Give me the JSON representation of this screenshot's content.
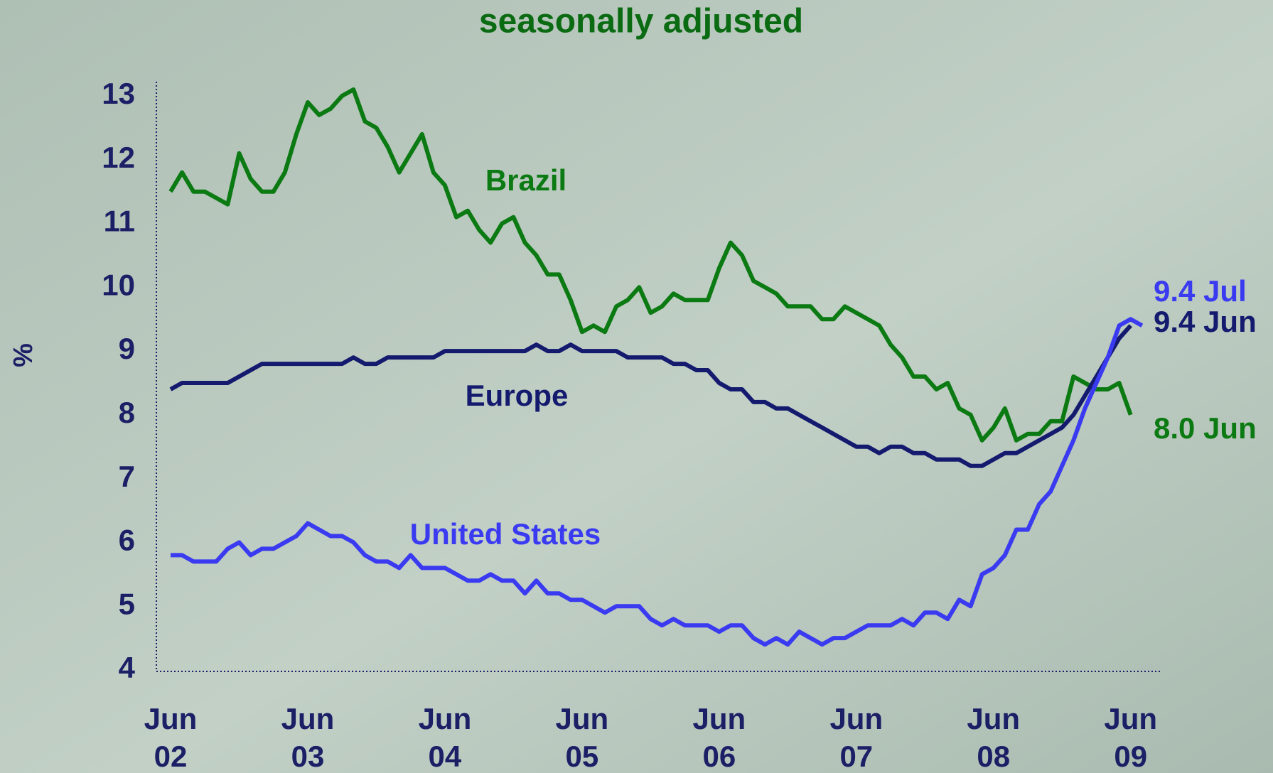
{
  "chart_data": {
    "type": "line",
    "title": "seasonally adjusted",
    "y_label": "%",
    "categories": [
      "Jun 02",
      null,
      null,
      null,
      null,
      null,
      null,
      null,
      null,
      null,
      null,
      null,
      "Jun 03",
      null,
      null,
      null,
      null,
      null,
      null,
      null,
      null,
      null,
      null,
      null,
      "Jun 04",
      null,
      null,
      null,
      null,
      null,
      null,
      null,
      null,
      null,
      null,
      null,
      "Jun 05",
      null,
      null,
      null,
      null,
      null,
      null,
      null,
      null,
      null,
      null,
      null,
      "Jun 06",
      null,
      null,
      null,
      null,
      null,
      null,
      null,
      null,
      null,
      null,
      null,
      "Jun 07",
      null,
      null,
      null,
      null,
      null,
      null,
      null,
      null,
      null,
      null,
      null,
      "Jun 08",
      null,
      null,
      null,
      null,
      null,
      null,
      null,
      null,
      null,
      null,
      null,
      "Jun 09",
      null
    ],
    "ylim": [
      4,
      13
    ],
    "yticks": [
      4,
      5,
      6,
      7,
      8,
      9,
      10,
      11,
      12,
      13
    ],
    "grid": false,
    "series": [
      {
        "name": "Brazil",
        "color": "#0b7a12",
        "end_label": "8.0 Jun",
        "values": [
          11.5,
          11.8,
          11.5,
          11.5,
          11.4,
          11.3,
          12.1,
          11.7,
          11.5,
          11.5,
          11.8,
          12.4,
          12.9,
          12.7,
          12.8,
          13.0,
          13.1,
          12.6,
          12.5,
          12.2,
          11.8,
          12.1,
          12.4,
          11.8,
          11.6,
          11.1,
          11.2,
          10.9,
          10.7,
          11.0,
          11.1,
          10.7,
          10.5,
          10.2,
          10.2,
          9.8,
          9.3,
          9.4,
          9.3,
          9.7,
          9.8,
          10.0,
          9.6,
          9.7,
          9.9,
          9.8,
          9.8,
          9.8,
          10.3,
          10.7,
          10.5,
          10.1,
          10.0,
          9.9,
          9.7,
          9.7,
          9.7,
          9.5,
          9.5,
          9.7,
          9.6,
          9.5,
          9.4,
          9.1,
          8.9,
          8.6,
          8.6,
          8.4,
          8.5,
          8.1,
          8.0,
          7.6,
          7.8,
          8.1,
          7.6,
          7.7,
          7.7,
          7.9,
          7.9,
          8.6,
          8.5,
          8.4,
          8.4,
          8.5,
          8.0,
          null
        ]
      },
      {
        "name": "Europe",
        "color": "#141a6e",
        "end_label": "9.4 Jun",
        "values": [
          8.4,
          8.5,
          8.5,
          8.5,
          8.5,
          8.5,
          8.6,
          8.7,
          8.8,
          8.8,
          8.8,
          8.8,
          8.8,
          8.8,
          8.8,
          8.8,
          8.9,
          8.8,
          8.8,
          8.9,
          8.9,
          8.9,
          8.9,
          8.9,
          9.0,
          9.0,
          9.0,
          9.0,
          9.0,
          9.0,
          9.0,
          9.0,
          9.1,
          9.0,
          9.0,
          9.1,
          9.0,
          9.0,
          9.0,
          9.0,
          8.9,
          8.9,
          8.9,
          8.9,
          8.8,
          8.8,
          8.7,
          8.7,
          8.5,
          8.4,
          8.4,
          8.2,
          8.2,
          8.1,
          8.1,
          8.0,
          7.9,
          7.8,
          7.7,
          7.6,
          7.5,
          7.5,
          7.4,
          7.5,
          7.5,
          7.4,
          7.4,
          7.3,
          7.3,
          7.3,
          7.2,
          7.2,
          7.3,
          7.4,
          7.4,
          7.5,
          7.6,
          7.7,
          7.8,
          8.0,
          8.3,
          8.6,
          8.9,
          9.2,
          9.4,
          null
        ]
      },
      {
        "name": "United States",
        "color": "#3a3af0",
        "end_label": "9.4 Jul",
        "values": [
          5.8,
          5.8,
          5.7,
          5.7,
          5.7,
          5.9,
          6.0,
          5.8,
          5.9,
          5.9,
          6.0,
          6.1,
          6.3,
          6.2,
          6.1,
          6.1,
          6.0,
          5.8,
          5.7,
          5.7,
          5.6,
          5.8,
          5.6,
          5.6,
          5.6,
          5.5,
          5.4,
          5.4,
          5.5,
          5.4,
          5.4,
          5.2,
          5.4,
          5.2,
          5.2,
          5.1,
          5.1,
          5.0,
          4.9,
          5.0,
          5.0,
          5.0,
          4.8,
          4.7,
          4.8,
          4.7,
          4.7,
          4.7,
          4.6,
          4.7,
          4.7,
          4.5,
          4.4,
          4.5,
          4.4,
          4.6,
          4.5,
          4.4,
          4.5,
          4.5,
          4.6,
          4.7,
          4.7,
          4.7,
          4.8,
          4.7,
          4.9,
          4.9,
          4.8,
          5.1,
          5.0,
          5.5,
          5.6,
          5.8,
          6.2,
          6.2,
          6.6,
          6.8,
          7.2,
          7.6,
          8.1,
          8.5,
          8.9,
          9.4,
          9.5,
          9.4
        ]
      }
    ]
  }
}
